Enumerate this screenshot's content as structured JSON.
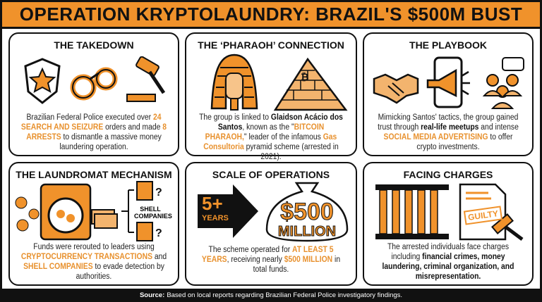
{
  "title": "OPERATION KRYPTOLAUNDRY: BRAZIL'S $500M BUST",
  "colors": {
    "accent": "#f0922b",
    "dark": "#111111"
  },
  "panels": [
    {
      "heading": "THE TAKEDOWN",
      "icons": [
        "police-badge-icon",
        "handcuffs-icon",
        "gavel-icon"
      ],
      "text": [
        {
          "t": "Brazilian Federal Police executed over ",
          "s": "n"
        },
        {
          "t": "24 SEARCH AND SEIZURE",
          "s": "o"
        },
        {
          "t": " orders and made ",
          "s": "n"
        },
        {
          "t": "8 ARRESTS",
          "s": "o"
        },
        {
          "t": " to dismantle a massive money laundering operation.",
          "s": "n"
        }
      ]
    },
    {
      "heading": "THE ‘PHARAOH’ CONNECTION",
      "icons": [
        "pharaoh-icon",
        "pyramid-icon"
      ],
      "text": [
        {
          "t": "The group is linked to ",
          "s": "n"
        },
        {
          "t": "Glaidson Acácio dos Santos",
          "s": "b"
        },
        {
          "t": ", known as the \"",
          "s": "n"
        },
        {
          "t": "BITCOIN PHARAOH,",
          "s": "o"
        },
        {
          "t": "\" leader of the infamous ",
          "s": "n"
        },
        {
          "t": "Gas Consultoria",
          "s": "o"
        },
        {
          "t": " pyramid scheme (arrested in 2021).",
          "s": "n"
        }
      ]
    },
    {
      "heading": "THE PLAYBOOK",
      "icons": [
        "handshake-icon",
        "megaphone-phone-icon",
        "group-chat-icon"
      ],
      "text": [
        {
          "t": "Mimicking Santos' tactics, the group gained trust through ",
          "s": "n"
        },
        {
          "t": "real-life meetups",
          "s": "b"
        },
        {
          "t": " and intense ",
          "s": "n"
        },
        {
          "t": "SOCIAL MEDIA ADVERTISING",
          "s": "o"
        },
        {
          "t": " to offer crypto investments.",
          "s": "n"
        }
      ]
    },
    {
      "heading": "THE LAUNDROMAT MECHANISM",
      "icons": [
        "washing-machine-icon",
        "bitcoin-icon",
        "cash-icon",
        "building-icon"
      ],
      "label": "SHELL COMPANIES",
      "q": "?",
      "text": [
        {
          "t": "Funds were rerouted to leaders using ",
          "s": "n"
        },
        {
          "t": "CRYPTOCURRENCY TRANSACTIONS",
          "s": "o"
        },
        {
          "t": " and ",
          "s": "n"
        },
        {
          "t": "SHELL COMPANIES",
          "s": "o"
        },
        {
          "t": " to evade detection by authorities.",
          "s": "n"
        }
      ]
    },
    {
      "heading": "SCALE OF OPERATIONS",
      "icons": [
        "arrow-icon",
        "money-bag-icon"
      ],
      "years_num": "5+",
      "years_label": "YEARS",
      "amount": "$500",
      "amount_unit": "MILLION",
      "text": [
        {
          "t": "The scheme operated for ",
          "s": "n"
        },
        {
          "t": "AT LEAST 5 YEARS",
          "s": "o"
        },
        {
          "t": ", receiving nearly ",
          "s": "n"
        },
        {
          "t": "$500 MILLION",
          "s": "o"
        },
        {
          "t": " in total funds.",
          "s": "n"
        }
      ]
    },
    {
      "heading": "FACING CHARGES",
      "icons": [
        "jail-bars-icon",
        "document-icon",
        "gavel-icon"
      ],
      "stamp": "GUILTY",
      "text": [
        {
          "t": "The arrested individuals face charges including ",
          "s": "n"
        },
        {
          "t": "financial crimes, money laundering, criminal organization, and misrepresentation.",
          "s": "b"
        }
      ]
    }
  ],
  "footer": {
    "label": "Source:",
    "text": "Based on local reports regarding Brazilian Federal Police investigatory findings."
  }
}
